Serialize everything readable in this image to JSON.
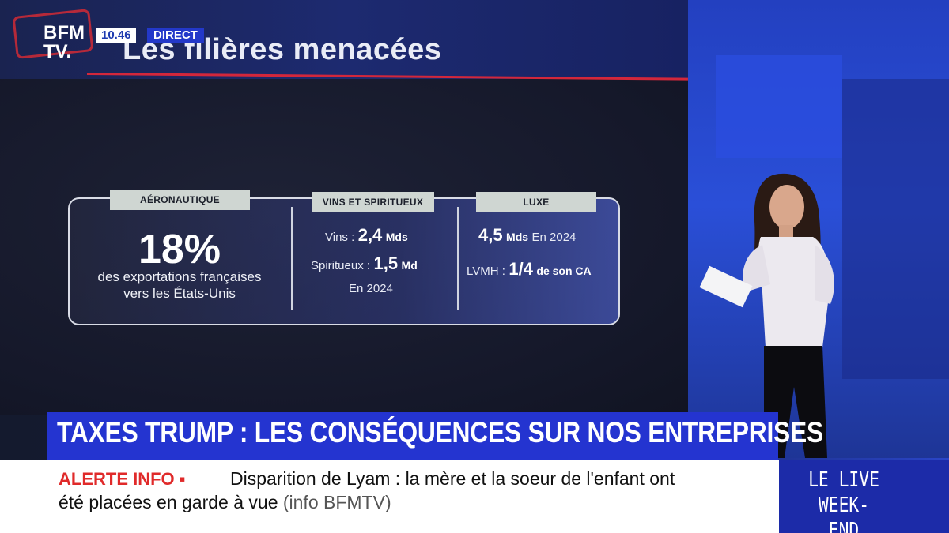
{
  "broadcast": {
    "logo_line1": "BFM",
    "logo_line2": "TV.",
    "time": "10.46",
    "live_label": "DIRECT"
  },
  "slide": {
    "title": "Les filières menacées",
    "panels": [
      {
        "tag": "AÉRONAUTIQUE",
        "headline": "18%",
        "desc_line1": "des exportations françaises",
        "desc_line2": "vers les États-Unis"
      },
      {
        "tag": "VINS ET SPIRITUEUX",
        "row1_label": "Vins :",
        "row1_value": "2,4",
        "row1_unit": "Mds",
        "row2_label": "Spiritueux :",
        "row2_value": "1,5",
        "row2_unit": "Md",
        "row3": "En 2024"
      },
      {
        "tag": "LUXE",
        "row1_value": "4,5",
        "row1_unit": "Mds",
        "row1_suffix": "En 2024",
        "row2_label": "LVMH :",
        "row2_value": "1/4",
        "row2_suffix": "de son CA"
      }
    ]
  },
  "headline": "TAXES TRUMP : LES CONSÉQUENCES SUR NOS ENTREPRISES",
  "ticker": {
    "alert_label": "ALERTE INFO ▪",
    "message_line1": "Disparition de Lyam : la mère et la soeur de l'enfant ont",
    "message_line2": "été placées en garde à vue",
    "source": "(info BFMTV)"
  },
  "program": {
    "line1": "LE LIVE",
    "line2": "WEEK-END"
  },
  "colors": {
    "channel_blue": "#2434d0",
    "alert_red": "#e02a2a",
    "accent_red": "#d3273b"
  }
}
